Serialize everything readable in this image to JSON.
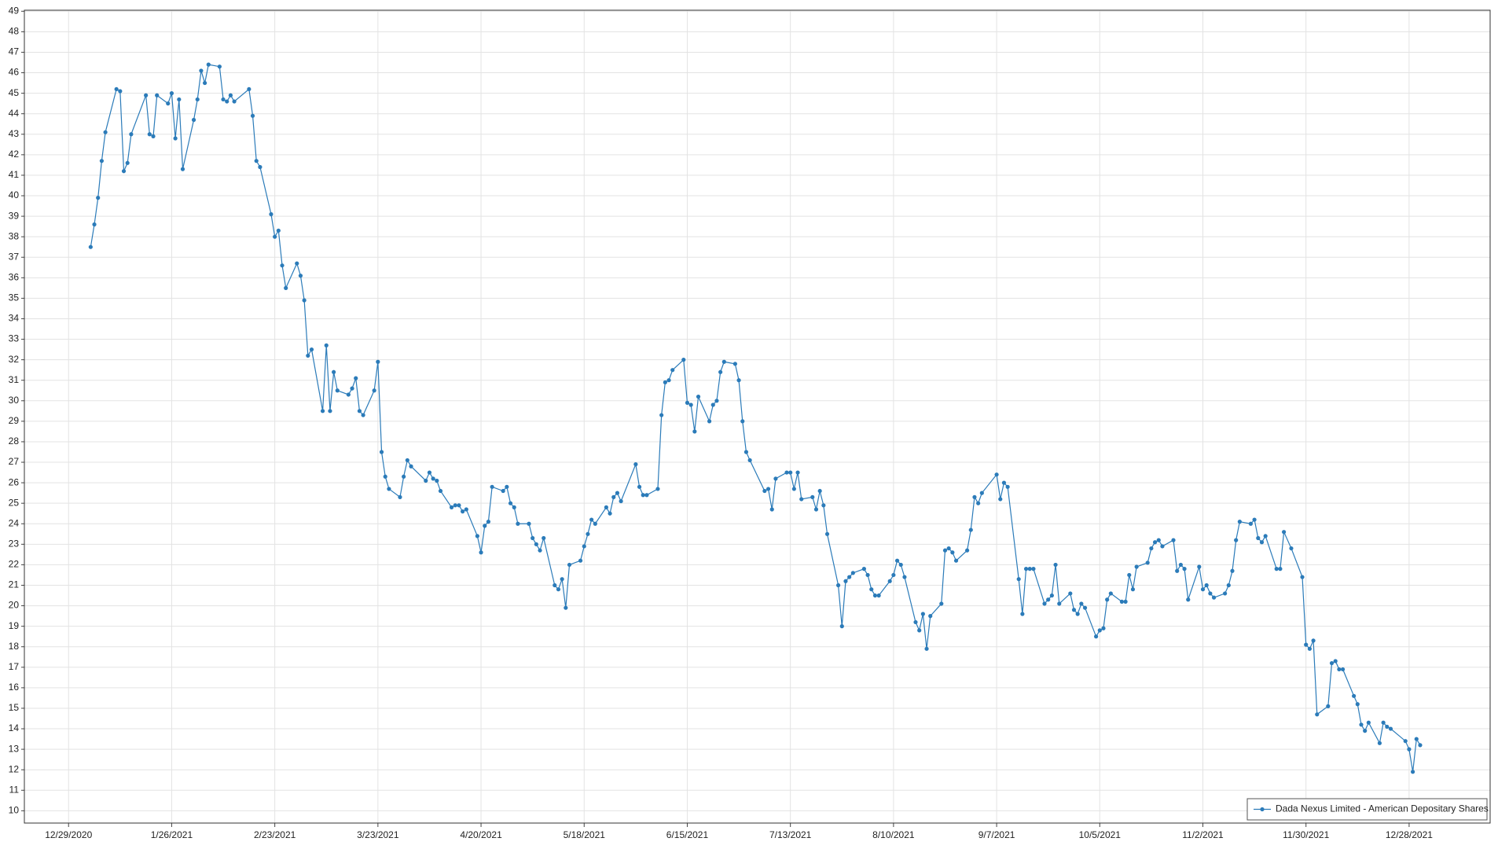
{
  "chart_data": {
    "type": "line",
    "x": [
      "1/4/2021",
      "1/5/2021",
      "1/6/2021",
      "1/7/2021",
      "1/8/2021",
      "1/11/2021",
      "1/12/2021",
      "1/13/2021",
      "1/14/2021",
      "1/15/2021",
      "1/19/2021",
      "1/20/2021",
      "1/21/2021",
      "1/22/2021",
      "1/25/2021",
      "1/26/2021",
      "1/27/2021",
      "1/28/2021",
      "1/29/2021",
      "2/1/2021",
      "2/2/2021",
      "2/3/2021",
      "2/4/2021",
      "2/5/2021",
      "2/8/2021",
      "2/9/2021",
      "2/10/2021",
      "2/11/2021",
      "2/12/2021",
      "2/16/2021",
      "2/17/2021",
      "2/18/2021",
      "2/19/2021",
      "2/22/2021",
      "2/23/2021",
      "2/24/2021",
      "2/25/2021",
      "2/26/2021",
      "3/1/2021",
      "3/2/2021",
      "3/3/2021",
      "3/4/2021",
      "3/5/2021",
      "3/8/2021",
      "3/9/2021",
      "3/10/2021",
      "3/11/2021",
      "3/12/2021",
      "3/15/2021",
      "3/16/2021",
      "3/17/2021",
      "3/18/2021",
      "3/19/2021",
      "3/22/2021",
      "3/23/2021",
      "3/24/2021",
      "3/25/2021",
      "3/26/2021",
      "3/29/2021",
      "3/30/2021",
      "3/31/2021",
      "4/1/2021",
      "4/5/2021",
      "4/6/2021",
      "4/7/2021",
      "4/8/2021",
      "4/9/2021",
      "4/12/2021",
      "4/13/2021",
      "4/14/2021",
      "4/15/2021",
      "4/16/2021",
      "4/19/2021",
      "4/20/2021",
      "4/21/2021",
      "4/22/2021",
      "4/23/2021",
      "4/26/2021",
      "4/27/2021",
      "4/28/2021",
      "4/29/2021",
      "4/30/2021",
      "5/3/2021",
      "5/4/2021",
      "5/5/2021",
      "5/6/2021",
      "5/7/2021",
      "5/10/2021",
      "5/11/2021",
      "5/12/2021",
      "5/13/2021",
      "5/14/2021",
      "5/17/2021",
      "5/18/2021",
      "5/19/2021",
      "5/20/2021",
      "5/21/2021",
      "5/24/2021",
      "5/25/2021",
      "5/26/2021",
      "5/27/2021",
      "5/28/2021",
      "6/1/2021",
      "6/2/2021",
      "6/3/2021",
      "6/4/2021",
      "6/7/2021",
      "6/8/2021",
      "6/9/2021",
      "6/10/2021",
      "6/11/2021",
      "6/14/2021",
      "6/15/2021",
      "6/16/2021",
      "6/17/2021",
      "6/18/2021",
      "6/21/2021",
      "6/22/2021",
      "6/23/2021",
      "6/24/2021",
      "6/25/2021",
      "6/28/2021",
      "6/29/2021",
      "6/30/2021",
      "7/1/2021",
      "7/2/2021",
      "7/6/2021",
      "7/7/2021",
      "7/8/2021",
      "7/9/2021",
      "7/12/2021",
      "7/13/2021",
      "7/14/2021",
      "7/15/2021",
      "7/16/2021",
      "7/19/2021",
      "7/20/2021",
      "7/21/2021",
      "7/22/2021",
      "7/23/2021",
      "7/26/2021",
      "7/27/2021",
      "7/28/2021",
      "7/29/2021",
      "7/30/2021",
      "8/2/2021",
      "8/3/2021",
      "8/4/2021",
      "8/5/2021",
      "8/6/2021",
      "8/9/2021",
      "8/10/2021",
      "8/11/2021",
      "8/12/2021",
      "8/13/2021",
      "8/16/2021",
      "8/17/2021",
      "8/18/2021",
      "8/19/2021",
      "8/20/2021",
      "8/23/2021",
      "8/24/2021",
      "8/25/2021",
      "8/26/2021",
      "8/27/2021",
      "8/30/2021",
      "8/31/2021",
      "9/1/2021",
      "9/2/2021",
      "9/3/2021",
      "9/7/2021",
      "9/8/2021",
      "9/9/2021",
      "9/10/2021",
      "9/13/2021",
      "9/14/2021",
      "9/15/2021",
      "9/16/2021",
      "9/17/2021",
      "9/20/2021",
      "9/21/2021",
      "9/22/2021",
      "9/23/2021",
      "9/24/2021",
      "9/27/2021",
      "9/28/2021",
      "9/29/2021",
      "9/30/2021",
      "10/1/2021",
      "10/4/2021",
      "10/5/2021",
      "10/6/2021",
      "10/7/2021",
      "10/8/2021",
      "10/11/2021",
      "10/12/2021",
      "10/13/2021",
      "10/14/2021",
      "10/15/2021",
      "10/18/2021",
      "10/19/2021",
      "10/20/2021",
      "10/21/2021",
      "10/22/2021",
      "10/25/2021",
      "10/26/2021",
      "10/27/2021",
      "10/28/2021",
      "10/29/2021",
      "11/1/2021",
      "11/2/2021",
      "11/3/2021",
      "11/4/2021",
      "11/5/2021",
      "11/8/2021",
      "11/9/2021",
      "11/10/2021",
      "11/11/2021",
      "11/12/2021",
      "11/15/2021",
      "11/16/2021",
      "11/17/2021",
      "11/18/2021",
      "11/19/2021",
      "11/22/2021",
      "11/23/2021",
      "11/24/2021",
      "11/26/2021",
      "11/29/2021",
      "11/30/2021",
      "12/1/2021",
      "12/2/2021",
      "12/3/2021",
      "12/6/2021",
      "12/7/2021",
      "12/8/2021",
      "12/9/2021",
      "12/10/2021",
      "12/13/2021",
      "12/14/2021",
      "12/15/2021",
      "12/16/2021",
      "12/17/2021",
      "12/20/2021",
      "12/21/2021",
      "12/22/2021",
      "12/23/2021",
      "12/27/2021",
      "12/28/2021",
      "12/29/2021",
      "12/30/2021",
      "12/31/2021"
    ],
    "series": [
      {
        "name": "Dada Nexus Limited - American Depositary Shares",
        "color": "#2b7bb9",
        "values": [
          37.5,
          38.6,
          39.9,
          41.7,
          43.1,
          45.2,
          45.1,
          41.2,
          41.6,
          43.0,
          44.9,
          43.0,
          42.9,
          44.9,
          44.5,
          45.0,
          42.8,
          44.7,
          41.3,
          43.7,
          44.7,
          46.1,
          45.5,
          46.4,
          46.3,
          44.7,
          44.6,
          44.9,
          44.6,
          45.2,
          43.9,
          41.7,
          41.4,
          39.1,
          38.0,
          38.3,
          36.6,
          35.5,
          36.7,
          36.1,
          34.9,
          32.2,
          32.5,
          29.5,
          32.7,
          29.5,
          31.4,
          30.5,
          30.3,
          30.6,
          31.1,
          29.5,
          29.3,
          30.5,
          31.9,
          27.5,
          26.3,
          25.7,
          25.3,
          26.3,
          27.1,
          26.8,
          26.1,
          26.5,
          26.2,
          26.1,
          25.6,
          24.8,
          24.9,
          24.9,
          24.6,
          24.7,
          23.4,
          22.6,
          23.9,
          24.1,
          25.8,
          25.6,
          25.8,
          25.0,
          24.8,
          24.0,
          24.0,
          23.3,
          23.0,
          22.7,
          23.3,
          21.0,
          20.8,
          21.3,
          19.9,
          22.0,
          22.2,
          22.9,
          23.5,
          24.2,
          24.0,
          24.8,
          24.5,
          25.3,
          25.5,
          25.1,
          26.9,
          25.8,
          25.4,
          25.4,
          25.7,
          29.3,
          30.9,
          31.0,
          31.5,
          32.0,
          29.9,
          29.8,
          28.5,
          30.2,
          29.0,
          29.8,
          30.0,
          31.4,
          31.9,
          31.8,
          31.0,
          29.0,
          27.5,
          27.1,
          25.6,
          25.7,
          24.7,
          26.2,
          26.5,
          26.5,
          25.7,
          26.5,
          25.2,
          25.3,
          24.7,
          25.6,
          24.9,
          23.5,
          21.0,
          19.0,
          21.2,
          21.4,
          21.6,
          21.8,
          21.5,
          20.8,
          20.5,
          20.5,
          21.2,
          21.5,
          22.2,
          22.0,
          21.4,
          19.2,
          18.8,
          19.6,
          17.9,
          19.5,
          20.1,
          22.7,
          22.8,
          22.6,
          22.2,
          22.7,
          23.7,
          25.3,
          25.0,
          25.5,
          26.4,
          25.2,
          26.0,
          25.8,
          21.3,
          19.6,
          21.8,
          21.8,
          21.8,
          20.1,
          20.3,
          20.5,
          22.0,
          20.1,
          20.6,
          19.8,
          19.6,
          20.1,
          19.9,
          18.5,
          18.8,
          18.9,
          20.3,
          20.6,
          20.2,
          20.2,
          21.5,
          20.8,
          21.9,
          22.1,
          22.8,
          23.1,
          23.2,
          22.9,
          23.2,
          21.7,
          22.0,
          21.8,
          20.3,
          21.9,
          20.8,
          21.0,
          20.6,
          20.4,
          20.6,
          21.0,
          21.7,
          23.2,
          24.1,
          24.0,
          24.2,
          23.3,
          23.1,
          23.4,
          21.8,
          21.8,
          23.6,
          22.8,
          21.4,
          18.1,
          17.9,
          18.3,
          14.7,
          15.1,
          17.2,
          17.3,
          16.9,
          16.9,
          15.6,
          15.2,
          14.2,
          13.9,
          14.3,
          13.3,
          14.3,
          14.1,
          14.0,
          13.4,
          13.0,
          11.9,
          13.5,
          13.2
        ]
      }
    ],
    "xlim": [
      "12/17/2020",
      "1/19/2022"
    ],
    "xticks": [
      "12/29/2020",
      "1/26/2021",
      "2/23/2021",
      "3/23/2021",
      "4/20/2021",
      "5/18/2021",
      "6/15/2021",
      "7/13/2021",
      "8/10/2021",
      "9/7/2021",
      "10/5/2021",
      "11/2/2021",
      "11/30/2021",
      "12/28/2021"
    ],
    "ylim": [
      9.4,
      49.05
    ],
    "yticks": [
      10,
      11,
      12,
      13,
      14,
      15,
      16,
      17,
      18,
      19,
      20,
      21,
      22,
      23,
      24,
      25,
      26,
      27,
      28,
      29,
      30,
      31,
      32,
      33,
      34,
      35,
      36,
      37,
      38,
      39,
      40,
      41,
      42,
      43,
      44,
      45,
      46,
      47,
      48,
      49
    ],
    "grid": true,
    "legend": "lower right"
  }
}
